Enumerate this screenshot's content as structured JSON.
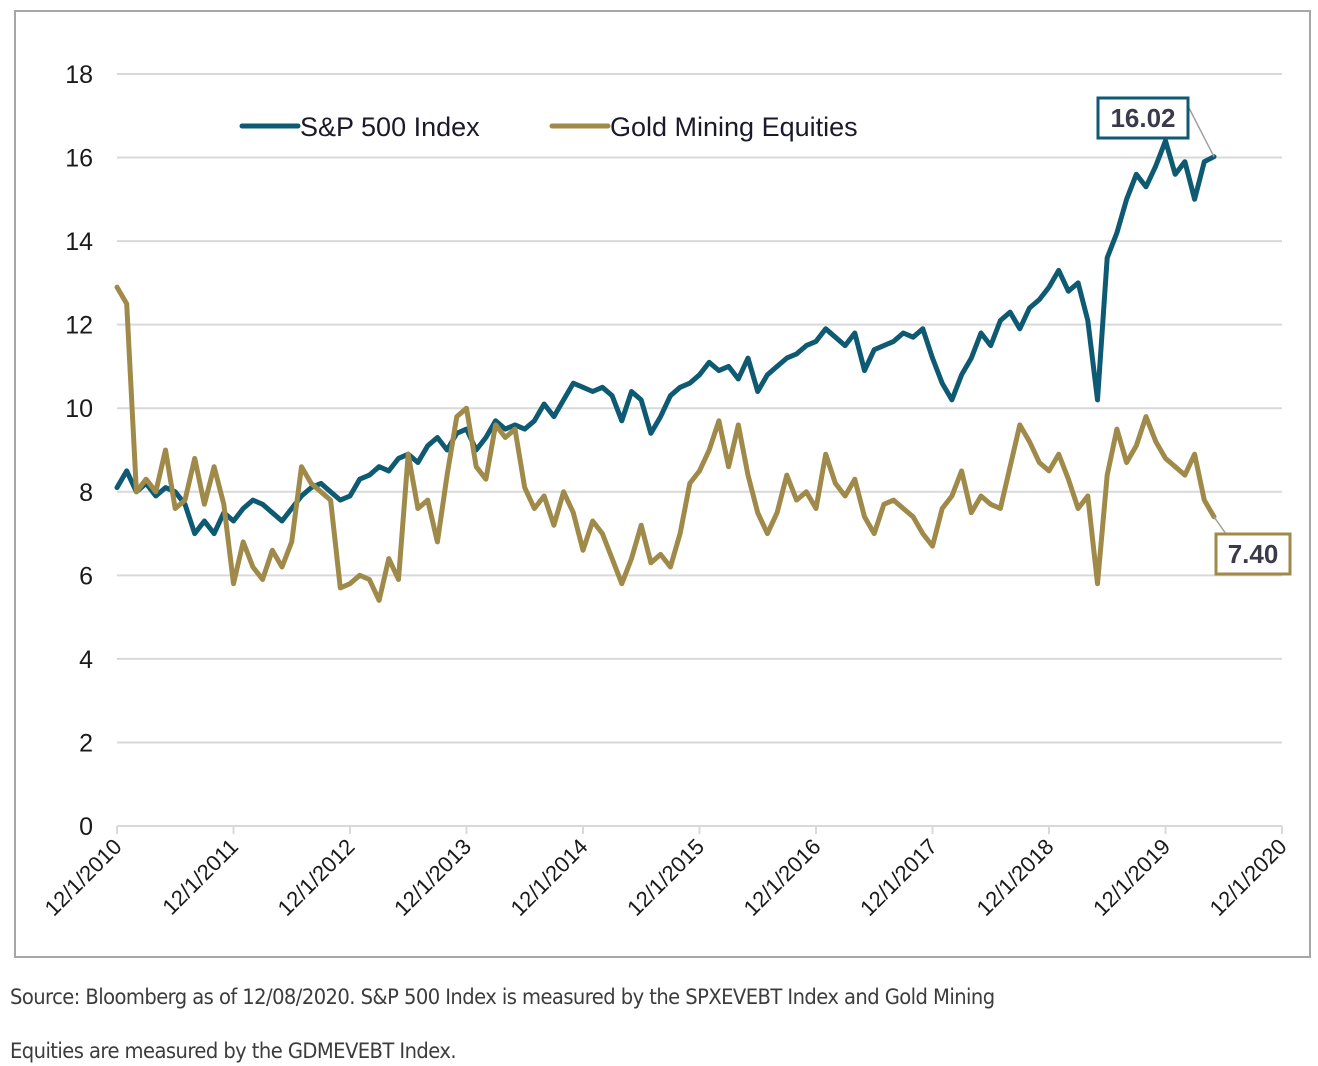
{
  "chart_data": {
    "type": "line",
    "title": "",
    "xlabel": "",
    "ylabel": "",
    "ylim": [
      0,
      18
    ],
    "yticks": [
      "0",
      "2",
      "4",
      "6",
      "8",
      "10",
      "12",
      "14",
      "16",
      "18"
    ],
    "ytick_values": [
      0,
      2,
      4,
      6,
      8,
      10,
      12,
      14,
      16,
      18
    ],
    "xticks": [
      "12/1/2010",
      "12/1/2011",
      "12/1/2012",
      "12/1/2013",
      "12/1/2014",
      "12/1/2015",
      "12/1/2016",
      "12/1/2017",
      "12/1/2018",
      "12/1/2019",
      "12/1/2020"
    ],
    "xlim": [
      "12/1/2010",
      "12/1/2020"
    ],
    "x_start_year": 2010.917,
    "x_step_years": 0.08333,
    "grid": "horizontal",
    "legend_position": "top-left",
    "series": [
      {
        "name": "S&P 500 Index",
        "color": "#0e5a73",
        "end_label": "16.02",
        "values": [
          8.1,
          8.5,
          8.0,
          8.2,
          7.9,
          8.1,
          8.0,
          7.7,
          7.0,
          7.3,
          7.0,
          7.5,
          7.3,
          7.6,
          7.8,
          7.7,
          7.5,
          7.3,
          7.6,
          7.9,
          8.1,
          8.2,
          8.0,
          7.8,
          7.9,
          8.3,
          8.4,
          8.6,
          8.5,
          8.8,
          8.9,
          8.7,
          9.1,
          9.3,
          9.0,
          9.4,
          9.5,
          9.0,
          9.3,
          9.7,
          9.5,
          9.6,
          9.5,
          9.7,
          10.1,
          9.8,
          10.2,
          10.6,
          10.5,
          10.4,
          10.5,
          10.3,
          9.7,
          10.4,
          10.2,
          9.4,
          9.8,
          10.3,
          10.5,
          10.6,
          10.8,
          11.1,
          10.9,
          11.0,
          10.7,
          11.2,
          10.4,
          10.8,
          11.0,
          11.2,
          11.3,
          11.5,
          11.6,
          11.9,
          11.7,
          11.5,
          11.8,
          10.9,
          11.4,
          11.5,
          11.6,
          11.8,
          11.7,
          11.9,
          11.2,
          10.6,
          10.2,
          10.8,
          11.2,
          11.8,
          11.5,
          12.1,
          12.3,
          11.9,
          12.4,
          12.6,
          12.9,
          13.3,
          12.8,
          13.0,
          12.1,
          10.2,
          13.6,
          14.2,
          15.0,
          15.6,
          15.3,
          15.8,
          16.4,
          15.6,
          15.9,
          15.0,
          15.9,
          16.02
        ]
      },
      {
        "name": "Gold Mining Equities",
        "color": "#a08a4a",
        "end_label": "7.40",
        "values": [
          12.9,
          12.5,
          8.0,
          8.3,
          8.0,
          9.0,
          7.6,
          7.8,
          8.8,
          7.7,
          8.6,
          7.7,
          5.8,
          6.8,
          6.2,
          5.9,
          6.6,
          6.2,
          6.8,
          8.6,
          8.2,
          8.0,
          7.8,
          5.7,
          5.8,
          6.0,
          5.9,
          5.4,
          6.4,
          5.9,
          8.9,
          7.6,
          7.8,
          6.8,
          8.4,
          9.8,
          10.0,
          8.6,
          8.3,
          9.6,
          9.3,
          9.5,
          8.1,
          7.6,
          7.9,
          7.2,
          8.0,
          7.5,
          6.6,
          7.3,
          7.0,
          6.4,
          5.8,
          6.4,
          7.2,
          6.3,
          6.5,
          6.2,
          7.0,
          8.2,
          8.5,
          9.0,
          9.7,
          8.6,
          9.6,
          8.4,
          7.5,
          7.0,
          7.5,
          8.4,
          7.8,
          8.0,
          7.6,
          8.9,
          8.2,
          7.9,
          8.3,
          7.4,
          7.0,
          7.7,
          7.8,
          7.6,
          7.4,
          7.0,
          6.7,
          7.6,
          7.9,
          8.5,
          7.5,
          7.9,
          7.7,
          7.6,
          8.6,
          9.6,
          9.2,
          8.7,
          8.5,
          8.9,
          8.3,
          7.6,
          7.9,
          5.8,
          8.4,
          9.5,
          8.7,
          9.1,
          9.8,
          9.2,
          8.8,
          8.6,
          8.4,
          8.9,
          7.8,
          7.4
        ]
      }
    ],
    "annotations": [
      {
        "text": "16.02",
        "series": "S&P 500 Index",
        "border_color": "#0e5a73"
      },
      {
        "text": "7.40",
        "series": "Gold Mining Equities",
        "border_color": "#a08a4a"
      }
    ]
  },
  "caption": {
    "line1": "Source: Bloomberg as of 12/08/2020. S&P 500 Index is measured by the SPXEVEBT Index and Gold Mining",
    "line2": "Equities are measured by the GDMEVEBT Index."
  }
}
